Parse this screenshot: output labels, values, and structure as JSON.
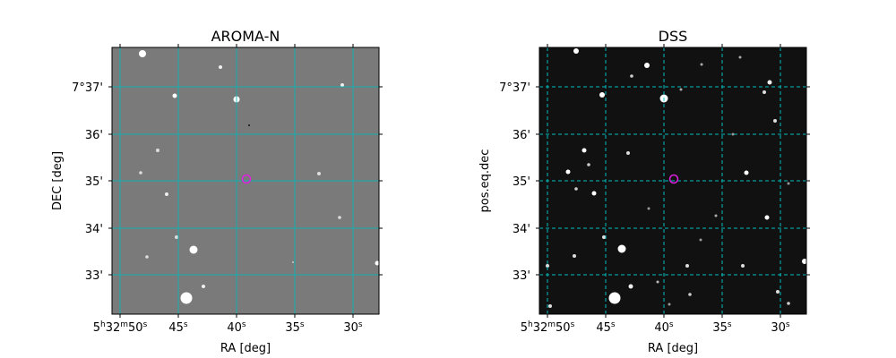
{
  "colors": {
    "panel1_background": "#7a7a7a",
    "panel2_background": "#111111",
    "grid": "#00b8b8",
    "grid_dss": "#00d0d0",
    "target_marker": "#e020e0",
    "star": "#ffffff"
  },
  "panels": [
    {
      "title": "AROMA-N",
      "xlabel": "RA [deg]",
      "ylabel": "DEC [deg]",
      "grid_style": "solid",
      "background": "gray",
      "target_marker": "circle"
    },
    {
      "title": "DSS",
      "xlabel": "RA [deg]",
      "ylabel": "pos.eq.dec",
      "grid_style": "dashed",
      "background": "dark",
      "target_marker": "circle"
    }
  ],
  "axes": {
    "x_ticks": [
      {
        "main": "5",
        "sup1": "h",
        "mid": "32",
        "sup2": "m",
        "end": "50",
        "sup3": "s"
      },
      {
        "main": "45",
        "sup3": "s"
      },
      {
        "main": "40",
        "sup3": "s"
      },
      {
        "main": "35",
        "sup3": "s"
      },
      {
        "main": "30",
        "sup3": "s"
      }
    ],
    "y_ticks": [
      "7°37'",
      "36'",
      "35'",
      "34'",
      "33'"
    ]
  }
}
